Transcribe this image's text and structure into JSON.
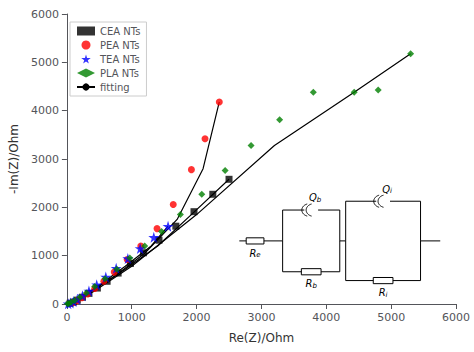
{
  "chart_data": {
    "type": "scatter",
    "xlabel": "Re(Z)/Ohm",
    "ylabel": "-Im(Z)/Ohm",
    "xlim": [
      0,
      6000
    ],
    "ylim": [
      0,
      6000
    ],
    "xticks": [
      0,
      1000,
      2000,
      3000,
      4000,
      5000,
      6000
    ],
    "yticks": [
      0,
      1000,
      2000,
      3000,
      4000,
      5000,
      6000
    ],
    "grid": false,
    "legend": "upper left",
    "series": [
      {
        "name": "CEA NTs",
        "type": "scatter",
        "marker": "square",
        "color": "#000000",
        "x": [
          50,
          100,
          160,
          240,
          340,
          470,
          620,
          790,
          980,
          1180,
          1420,
          1680,
          1960,
          2250,
          2500
        ],
        "values": [
          15,
          40,
          80,
          140,
          220,
          330,
          470,
          640,
          840,
          1060,
          1320,
          1610,
          1910,
          2270,
          2580
        ]
      },
      {
        "name": "PEA NTs",
        "type": "scatter",
        "marker": "circle",
        "color": "#ff0000",
        "x": [
          40,
          90,
          155,
          230,
          320,
          430,
          570,
          730,
          930,
          1140,
          1390,
          1640,
          1920,
          2130,
          2350
        ],
        "values": [
          10,
          30,
          70,
          130,
          210,
          320,
          470,
          660,
          920,
          1200,
          1560,
          2060,
          2780,
          3420,
          4180
        ]
      },
      {
        "name": "TEA NTs",
        "type": "scatter",
        "marker": "star",
        "color": "#0000ff",
        "x": [
          20,
          55,
          100,
          160,
          240,
          340,
          460,
          600,
          760,
          940,
          1130,
          1340,
          1560
        ],
        "values": [
          5,
          20,
          50,
          100,
          170,
          270,
          400,
          560,
          740,
          940,
          1150,
          1380,
          1610
        ]
      },
      {
        "name": "PLA NTs",
        "type": "scatter",
        "marker": "diamond",
        "color": "#008000",
        "x": [
          10,
          30,
          65,
          120,
          200,
          300,
          430,
          590,
          770,
          970,
          1200,
          1460,
          1750,
          2080,
          2440,
          2840,
          3280,
          3800,
          4430,
          4800,
          5300
        ],
        "values": [
          5,
          12,
          35,
          75,
          140,
          230,
          360,
          520,
          720,
          950,
          1200,
          1500,
          1850,
          2270,
          2760,
          3280,
          3810,
          4380,
          4380,
          4430,
          5180
        ]
      },
      {
        "name": "fitting",
        "type": "line",
        "line_style": "solid",
        "color": "#000000",
        "x": [
          50,
          400,
          900,
          1400,
          1960,
          2500
        ],
        "values": [
          15,
          290,
          720,
          1200,
          1900,
          2580
        ]
      },
      {
        "name": "fitting",
        "type": "line",
        "line_style": "solid",
        "color": "#000000",
        "x": [
          40,
          300,
          700,
          1200,
          1700,
          2100,
          2350
        ],
        "values": [
          10,
          200,
          540,
          1050,
          1750,
          2800,
          4180
        ]
      },
      {
        "name": "fitting",
        "type": "line",
        "line_style": "solid",
        "color": "#000000",
        "x": [
          20,
          200,
          500,
          900,
          1300,
          1560
        ],
        "values": [
          5,
          130,
          390,
          780,
          1200,
          1610
        ]
      },
      {
        "name": "fitting",
        "type": "line",
        "line_style": "solid",
        "color": "#000000",
        "x": [
          10,
          400,
          1000,
          2000,
          3200,
          4430,
          5300
        ],
        "values": [
          5,
          250,
          780,
          1850,
          3280,
          4380,
          5180
        ]
      }
    ],
    "annotations": [
      "Re",
      "Qb",
      "Rb",
      "Qi",
      "Ri"
    ]
  }
}
